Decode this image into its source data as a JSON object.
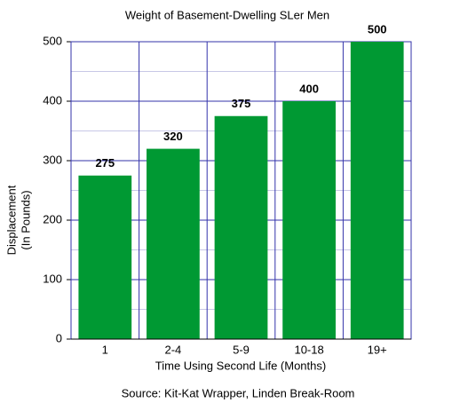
{
  "chart_data": {
    "type": "bar",
    "title": "Weight of Basement-Dwelling SLer Men",
    "categories": [
      "1",
      "2-4",
      "5-9",
      "10-18",
      "19+"
    ],
    "values": [
      275,
      320,
      375,
      400,
      500
    ],
    "color": "#009933",
    "ylim": [
      0,
      500
    ],
    "yticks": [
      0,
      100,
      200,
      300,
      400,
      500
    ],
    "minor_grid": [
      50,
      150,
      250,
      350,
      450
    ],
    "grid": true,
    "ylabel": [
      "Displacement",
      "(In Pounds)"
    ],
    "xlabel": "Time Using Second Life (Months)",
    "source": "Source: Kit-Kat Wrapper, Linden Break-Room"
  }
}
